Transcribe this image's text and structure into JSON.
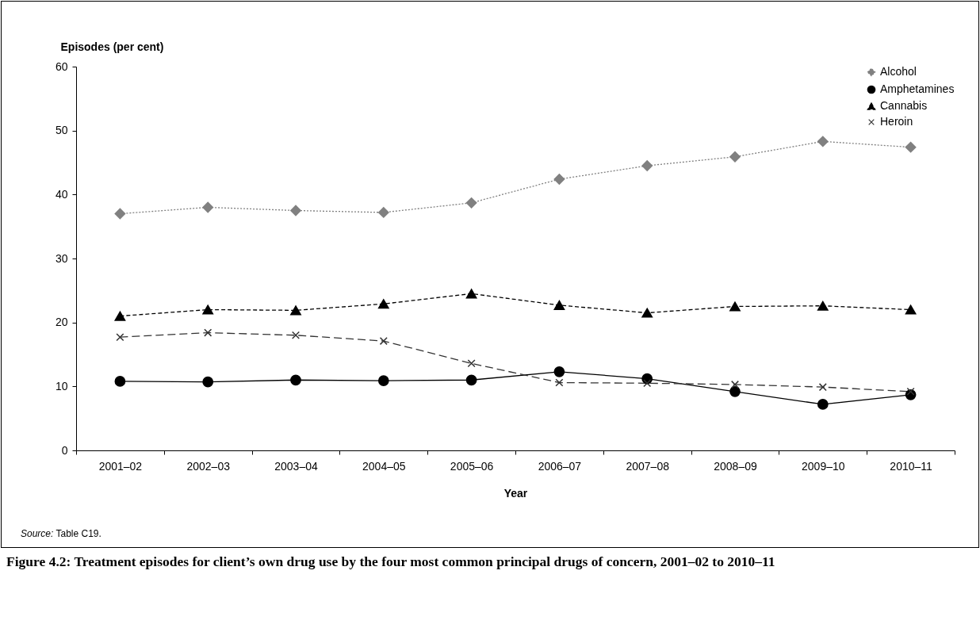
{
  "chart_data": {
    "type": "line",
    "title": "Figure 4.2: Treatment episodes for client’s own drug use by the four most common principal drugs of concern, 2001–02 to 2010–11",
    "xlabel": "Year",
    "ylabel": "Episodes (per cent)",
    "categories": [
      "2001–02",
      "2002–03",
      "2003–04",
      "2004–05",
      "2005–06",
      "2006–07",
      "2007–08",
      "2008–09",
      "2009–10",
      "2010–11"
    ],
    "series": [
      {
        "name": "Alcohol",
        "color": "#808080",
        "marker": "diamond",
        "line_style": "dotted",
        "values": [
          37.0,
          38.0,
          37.5,
          37.2,
          38.7,
          42.4,
          44.5,
          45.9,
          48.3,
          47.4
        ]
      },
      {
        "name": "Amphetamines",
        "color": "#000000",
        "marker": "circle",
        "line_style": "solid",
        "values": [
          10.8,
          10.7,
          11.0,
          10.9,
          11.0,
          12.3,
          11.2,
          9.2,
          7.2,
          8.7
        ]
      },
      {
        "name": "Cannabis",
        "color": "#000000",
        "marker": "triangle",
        "line_style": "dashed",
        "values": [
          21.0,
          22.0,
          21.9,
          22.9,
          24.5,
          22.7,
          21.5,
          22.5,
          22.6,
          22.0
        ]
      },
      {
        "name": "Heroin",
        "color": "#333333",
        "marker": "cross",
        "line_style": "dashed",
        "values": [
          17.7,
          18.4,
          18.0,
          17.1,
          13.6,
          10.6,
          10.5,
          10.3,
          9.9,
          9.2
        ]
      }
    ],
    "ylim": [
      0,
      60
    ],
    "yticks": [
      0,
      10,
      20,
      30,
      40,
      50,
      60
    ],
    "legend": "top right",
    "grid": false,
    "annotations": [
      "Source: Table C19."
    ]
  }
}
